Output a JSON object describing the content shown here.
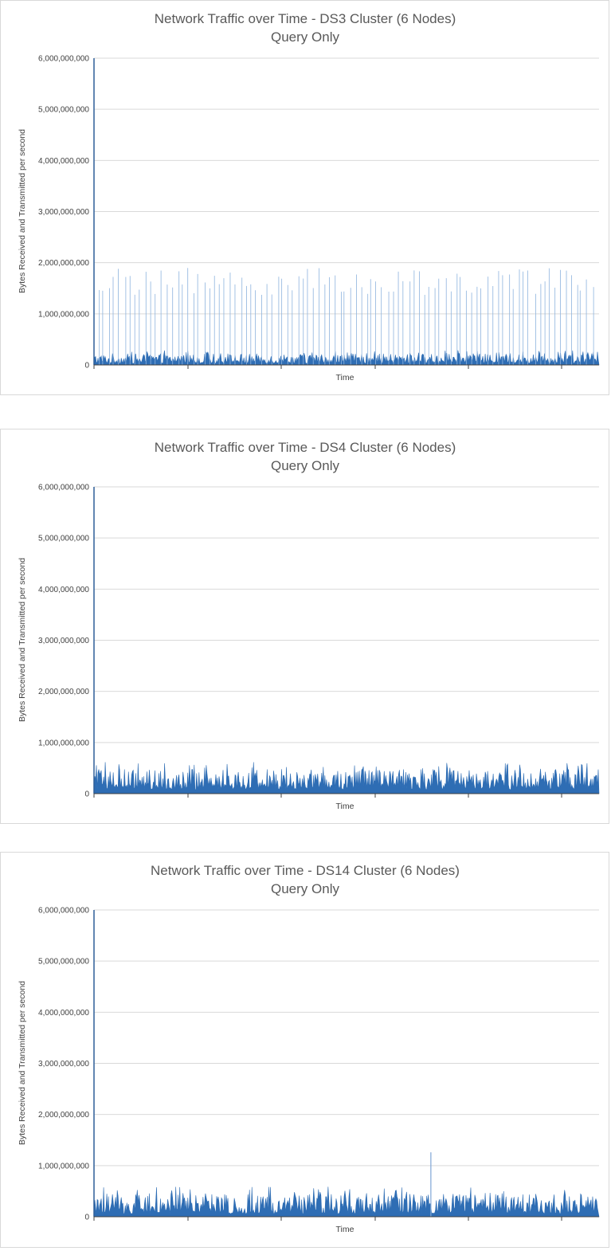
{
  "chart_data": [
    {
      "type": "area",
      "title": "Network Traffic over Time - DS3 Cluster (6 Nodes)",
      "subtitle": "Query Only",
      "xlabel": "Time",
      "ylabel": "Bytes Received and Transmitted per second",
      "ylim": [
        0,
        6000000000
      ],
      "yticks": [
        0,
        1000000000,
        2000000000,
        3000000000,
        4000000000,
        5000000000,
        6000000000
      ],
      "ytick_labels": [
        "0",
        "1,000,000,000",
        "2,000,000,000",
        "3,000,000,000",
        "4,000,000,000",
        "5,000,000,000",
        "6,000,000,000"
      ],
      "grid": true,
      "legend": "none",
      "color": "#2e6db4",
      "baseline_range": [
        30000000,
        220000000
      ],
      "spike_max": 1900000000,
      "spike_count": 95,
      "notes_values": {
        "typical_peak": 1800000000
      }
    },
    {
      "type": "area",
      "title": "Network Traffic over Time - DS4 Cluster (6 Nodes)",
      "subtitle": "Query Only",
      "xlabel": "Time",
      "ylabel": "Bytes Received and Transmitted per second",
      "ylim": [
        0,
        6000000000
      ],
      "yticks": [
        0,
        1000000000,
        2000000000,
        3000000000,
        4000000000,
        5000000000,
        6000000000
      ],
      "ytick_labels": [
        "0",
        "1,000,000,000",
        "2,000,000,000",
        "3,000,000,000",
        "4,000,000,000",
        "5,000,000,000",
        "6,000,000,000"
      ],
      "grid": true,
      "legend": "none",
      "color": "#2e6db4",
      "baseline_range": [
        80000000,
        480000000
      ],
      "spike_max": 650000000,
      "spike_count": 0
    },
    {
      "type": "area",
      "title": "Network Traffic over Time - DS14 Cluster (6 Nodes)",
      "subtitle": "Query Only",
      "xlabel": "Time",
      "ylabel": "Bytes Received and Transmitted per second",
      "ylim": [
        0,
        6000000000
      ],
      "yticks": [
        0,
        1000000000,
        2000000000,
        3000000000,
        4000000000,
        5000000000,
        6000000000
      ],
      "ytick_labels": [
        "0",
        "1,000,000,000",
        "2,000,000,000",
        "3,000,000,000",
        "4,000,000,000",
        "5,000,000,000",
        "6,000,000,000"
      ],
      "grid": true,
      "legend": "none",
      "color": "#2e6db4",
      "baseline_range": [
        60000000,
        450000000
      ],
      "spike_max": 1260000000,
      "spike_count": 1
    }
  ]
}
